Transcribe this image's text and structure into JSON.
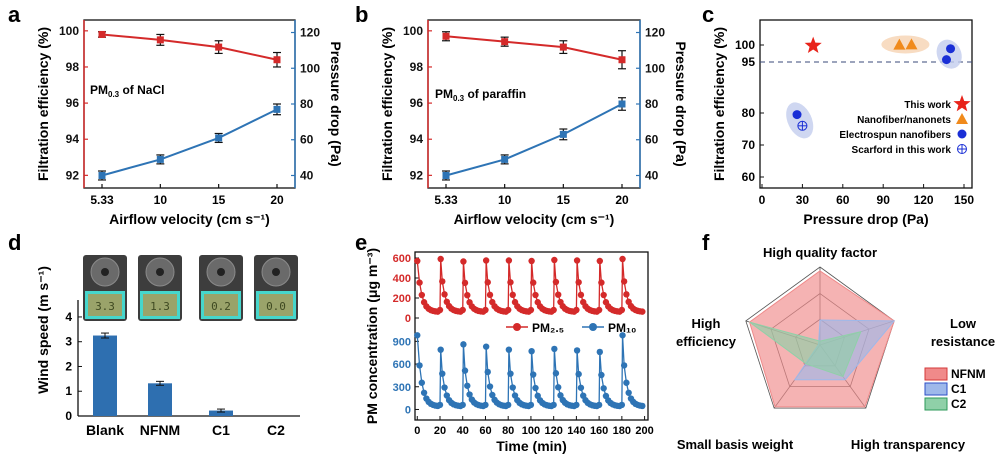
{
  "panels": {
    "a": {
      "letter": "a",
      "annotation_main": "PM",
      "annotation_sub": "0.3",
      "annotation_rest": " of  NaCl"
    },
    "b": {
      "letter": "b",
      "annotation_main": "PM",
      "annotation_sub": "0.3",
      "annotation_rest": " of  paraffin"
    },
    "c": {
      "letter": "c"
    },
    "d": {
      "letter": "d"
    },
    "e": {
      "letter": "e"
    },
    "f": {
      "letter": "f"
    }
  },
  "colors": {
    "red": "#d42a2a",
    "blue": "#2e74b5",
    "dark": "#111111",
    "axis_blue": "#2e74b5",
    "axis_red": "#d42a2a"
  },
  "chart_data": [
    {
      "id": "a",
      "type": "line",
      "x": [
        5.33,
        10,
        15,
        20
      ],
      "xticks": [
        "5.33",
        "10",
        "15",
        "20"
      ],
      "xlabel": "Airflow velocity (cm s⁻¹)",
      "ylabel_left": "Filtration efficiency (%)",
      "ylabel_right": "Pressure drop (Pa)",
      "ylim_left": [
        91.3,
        100.6
      ],
      "yticks_left": [
        92,
        94,
        96,
        98,
        100
      ],
      "ylim_right": [
        33,
        127
      ],
      "yticks_right": [
        40,
        60,
        80,
        100,
        120
      ],
      "series": [
        {
          "axis": "left",
          "values": [
            99.8,
            99.5,
            99.1,
            98.4
          ],
          "errors": [
            0.15,
            0.3,
            0.35,
            0.4
          ],
          "color": "#d42a2a"
        },
        {
          "axis": "right",
          "values": [
            40,
            49,
            61,
            77
          ],
          "errors": [
            2.5,
            2.5,
            2.5,
            3
          ],
          "color": "#2e74b5"
        }
      ]
    },
    {
      "id": "b",
      "type": "line",
      "x": [
        5.33,
        10,
        15,
        20
      ],
      "xticks": [
        "5.33",
        "10",
        "15",
        "20"
      ],
      "xlabel": "Airflow velocity (cm s⁻¹)",
      "ylabel_left": "Filtration efficiency (%)",
      "ylabel_right": "Pressure drop (Pa)",
      "ylim_left": [
        91.3,
        100.6
      ],
      "yticks_left": [
        92,
        94,
        96,
        98,
        100
      ],
      "ylim_right": [
        33,
        127
      ],
      "yticks_right": [
        40,
        60,
        80,
        100,
        120
      ],
      "series": [
        {
          "axis": "left",
          "values": [
            99.7,
            99.4,
            99.1,
            98.4
          ],
          "errors": [
            0.25,
            0.25,
            0.35,
            0.5
          ],
          "color": "#d42a2a"
        },
        {
          "axis": "right",
          "values": [
            40,
            49,
            63,
            80
          ],
          "errors": [
            2.5,
            2.5,
            3,
            3.5
          ],
          "color": "#2e74b5"
        }
      ]
    },
    {
      "id": "c",
      "type": "scatter",
      "xlabel": "Pressure drop (Pa)",
      "ylabel": "Filtration efficiency (%)",
      "xlim": [
        0,
        150
      ],
      "xticks": [
        0,
        30,
        60,
        90,
        120,
        150
      ],
      "ylim": [
        52,
        106
      ],
      "yticks": [
        60,
        70,
        80,
        95,
        100
      ],
      "threshold": 95,
      "points": [
        {
          "series": "This work",
          "x": 38,
          "y": 99.8,
          "marker": "star"
        },
        {
          "series": "Nanofiber/nanonets",
          "x": 102,
          "y": 100.1,
          "marker": "triangle"
        },
        {
          "series": "Nanofiber/nanonets",
          "x": 111,
          "y": 100.2,
          "marker": "triangle"
        },
        {
          "series": "Electrospun nanofibers",
          "x": 140,
          "y": 98.9,
          "marker": "circle"
        },
        {
          "series": "Electrospun nanofibers",
          "x": 137,
          "y": 95.7,
          "marker": "circle"
        },
        {
          "series": "Electrospun nanofibers",
          "x": 26,
          "y": 79.5,
          "marker": "circle"
        },
        {
          "series": "Scarford in this work",
          "x": 30,
          "y": 76,
          "marker": "crosscircle"
        }
      ],
      "legend": [
        "This work",
        "Nanofiber/nanonets",
        "Electrospun nanofibers",
        "Scarford in this work"
      ],
      "legend_loc": "lower-right"
    },
    {
      "id": "d",
      "type": "bar",
      "categories": [
        "Blank",
        "NFNM",
        "C1",
        "C2"
      ],
      "values": [
        3.25,
        1.32,
        0.22,
        0
      ],
      "errors": [
        0.1,
        0.08,
        0.06,
        0
      ],
      "ylabel": "Wind speed (m s⁻¹)",
      "ylim": [
        0,
        4.2
      ],
      "yticks": [
        0,
        1,
        2,
        3,
        4
      ],
      "photo_readings": [
        "3.3",
        "1.3",
        "0.2",
        "0.0"
      ]
    },
    {
      "id": "e",
      "type": "line",
      "xlabel": "Time (min)",
      "ylabel": "PM concentration (μg m⁻³)",
      "xlim": [
        -2,
        203
      ],
      "xticks": [
        0,
        20,
        40,
        60,
        80,
        100,
        120,
        140,
        160,
        180,
        200
      ],
      "ylim_top": [
        0,
        640
      ],
      "yticks_top": [
        0,
        200,
        400,
        600
      ],
      "ylim_bottom": [
        -60,
        1050
      ],
      "yticks_bottom": [
        0,
        300,
        600,
        900
      ],
      "cycle_starts": [
        0,
        20,
        40,
        60,
        80,
        100,
        120,
        140,
        160,
        180
      ],
      "series": [
        {
          "name": "PM₂.₅",
          "color": "#d42a2a",
          "peaks": [
            570,
            590,
            565,
            575,
            575,
            570,
            580,
            575,
            570,
            590
          ],
          "baseline": 60
        },
        {
          "name": "PM₁₀",
          "color": "#2e74b5",
          "peaks": [
            980,
            790,
            860,
            830,
            790,
            770,
            800,
            780,
            760,
            980
          ],
          "baseline": 40
        }
      ]
    },
    {
      "id": "f",
      "type": "radar",
      "axes": [
        "High quality factor",
        "Low resistance",
        "High transparency",
        "Small basis weight",
        "High efficiency"
      ],
      "series": [
        {
          "name": "NFNM",
          "color": "#f08a8a",
          "values": [
            0.95,
            1.0,
            0.98,
            0.98,
            0.95
          ]
        },
        {
          "name": "C1",
          "color": "#9eb8ea",
          "values": [
            0.32,
            1.0,
            0.55,
            0.55,
            0.0
          ]
        },
        {
          "name": "C2",
          "color": "#8fd0a8",
          "values": [
            0.05,
            0.55,
            0.5,
            0.3,
            0.95
          ]
        }
      ]
    }
  ]
}
